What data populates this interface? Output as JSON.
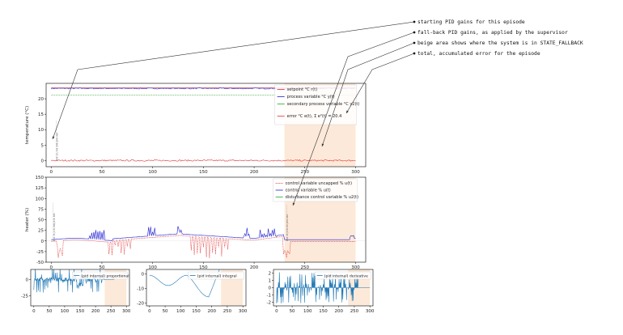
{
  "annotations": [
    "starting PID gains for this episode",
    "fall-back PID gains, as applied by the supervisor",
    "beige area shows where the system is in STATE_FALLBACK",
    "total, accumulated error for the episode"
  ],
  "colors": {
    "setpoint": "#d62728",
    "process": "#1f1fd0",
    "secondary": "#2ca02c",
    "error": "#e03030",
    "fallback": "#fde9d9",
    "pid": "#1f77b4"
  },
  "chart_data": [
    {
      "type": "line",
      "ylabel": "temperature (°C)",
      "xlim": [
        -5,
        310
      ],
      "ylim": [
        -2,
        25
      ],
      "xticks": [
        0,
        50,
        100,
        150,
        200,
        250,
        300
      ],
      "yticks": [
        0,
        5,
        10,
        15,
        20
      ],
      "fallback_region": [
        230,
        300
      ],
      "legend_position": "upper right",
      "vertical_text": "P=0.15,I=0.048,D=0.003",
      "series": [
        {
          "name": "setpoint °C r(t)",
          "values": [
            [
              0,
              23.5
            ],
            [
              300,
              23.5
            ]
          ]
        },
        {
          "name": "process variable °C y(t)",
          "values": [
            [
              0,
              23.4
            ],
            [
              50,
              23.3
            ],
            [
              100,
              23.3
            ],
            [
              150,
              23.5
            ],
            [
              200,
              23.3
            ],
            [
              250,
              23.4
            ],
            [
              300,
              23.4
            ]
          ]
        },
        {
          "name": "secondary process variable °C y2(t)",
          "values": [
            [
              0,
              21.2
            ],
            [
              300,
              21.2
            ]
          ]
        },
        {
          "name": "error °C e(t), Σ e²(t) = 20.4",
          "values": [
            [
              0,
              0.1
            ],
            [
              50,
              -0.1
            ],
            [
              100,
              0.0
            ],
            [
              150,
              0.2
            ],
            [
              200,
              -0.1
            ],
            [
              250,
              0.1
            ],
            [
              300,
              0.0
            ]
          ]
        }
      ]
    },
    {
      "type": "line",
      "ylabel": "heater (%)",
      "xlim": [
        -5,
        310
      ],
      "ylim": [
        -50,
        150
      ],
      "xticks": [
        0,
        50,
        100,
        150,
        200,
        250,
        300
      ],
      "yticks": [
        -50,
        -25,
        0,
        25,
        50,
        75,
        100,
        125,
        150
      ],
      "fallback_region": [
        230,
        300
      ],
      "legend_position": "upper right",
      "vertical_text_1": "P=0.15,I=0.048,D=0.003",
      "vertical_text_2": "P=0.15,I=0.03,D=0.002",
      "series": [
        {
          "name": "control variable uncapped % u(t)",
          "values": [
            [
              0,
              -5
            ],
            [
              10,
              -20
            ],
            [
              40,
              -15
            ],
            [
              60,
              -15
            ],
            [
              100,
              -25
            ],
            [
              150,
              -40
            ],
            [
              180,
              -20
            ],
            [
              200,
              -15
            ],
            [
              220,
              -5
            ],
            [
              230,
              -30
            ],
            [
              240,
              -5
            ],
            [
              300,
              5
            ]
          ]
        },
        {
          "name": "control variable % u(t)",
          "values": [
            [
              0,
              5
            ],
            [
              40,
              5
            ],
            [
              60,
              5
            ],
            [
              90,
              10
            ],
            [
              120,
              15
            ],
            [
              150,
              12
            ],
            [
              180,
              5
            ],
            [
              200,
              5
            ],
            [
              215,
              15
            ],
            [
              230,
              3
            ],
            [
              300,
              3
            ]
          ]
        },
        {
          "name": "disturbance control variable % u2(t)",
          "values": [
            [
              0,
              0
            ],
            [
              300,
              0
            ]
          ]
        }
      ]
    },
    {
      "type": "line",
      "xlim": [
        -10,
        310
      ],
      "ylim": [
        -40,
        15
      ],
      "xticks": [
        0,
        50,
        100,
        150,
        200,
        250,
        300
      ],
      "yticks": [
        -25,
        0
      ],
      "fallback_region": [
        230,
        300
      ],
      "legend_position": "upper right",
      "series": [
        {
          "name": "(pid internal) proportional",
          "values": [
            [
              0,
              0
            ],
            [
              50,
              -10
            ],
            [
              100,
              0
            ],
            [
              150,
              -12
            ],
            [
              200,
              5
            ],
            [
              230,
              0
            ],
            [
              300,
              5
            ]
          ]
        }
      ]
    },
    {
      "type": "line",
      "xlim": [
        -10,
        310
      ],
      "ylim": [
        -22,
        3
      ],
      "xticks": [
        0,
        50,
        100,
        150,
        200,
        250,
        300
      ],
      "yticks": [
        -20,
        -10,
        0
      ],
      "fallback_region": [
        230,
        300
      ],
      "legend_position": "upper right",
      "series": [
        {
          "name": "(pid internal) integral",
          "values": [
            [
              0,
              -1
            ],
            [
              20,
              -8
            ],
            [
              40,
              -3
            ],
            [
              60,
              -12
            ],
            [
              80,
              -5
            ],
            [
              100,
              -1
            ],
            [
              130,
              -6
            ],
            [
              160,
              -15
            ],
            [
              190,
              -20
            ],
            [
              210,
              -10
            ],
            [
              230,
              -5
            ]
          ]
        }
      ]
    },
    {
      "type": "line",
      "xlim": [
        -10,
        310
      ],
      "ylim": [
        -2.5,
        2.5
      ],
      "xticks": [
        0,
        50,
        100,
        150,
        200,
        250,
        300
      ],
      "yticks": [
        -2,
        -1,
        0,
        1,
        2
      ],
      "fallback_region": [
        230,
        300
      ],
      "legend_position": "upper right",
      "series": [
        {
          "name": "(pid internal) derivative",
          "values": [
            [
              0,
              0
            ],
            [
              300,
              0
            ]
          ]
        }
      ]
    }
  ]
}
